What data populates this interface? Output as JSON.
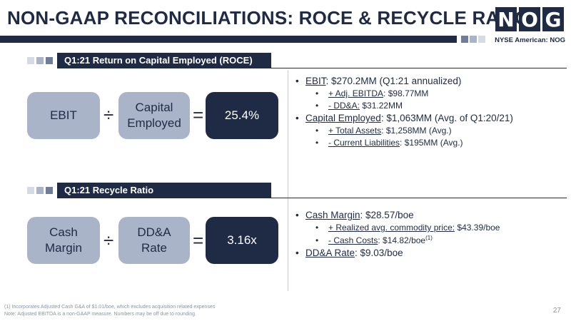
{
  "header": {
    "title": "NON-GAAP RECONCILIATIONS: ROCE & RECYCLE RATIO",
    "logo_letters": [
      "N",
      "O",
      "G"
    ],
    "exchange": "NYSE American: NOG"
  },
  "roce": {
    "heading": "Q1:21 Return on Capital Employed (ROCE)",
    "box1": "EBIT",
    "op1": "÷",
    "box2_line1": "Capital",
    "box2_line2": "Employed",
    "op2": "=",
    "result": "25.4%",
    "bullets": {
      "ebit_label": "EBIT",
      "ebit_value": ": $270.2MM (Q1:21 annualized)",
      "ebitda_label": "+ Adj. EBITDA",
      "ebitda_value": ": $98.77MM",
      "dda_label": "- DD&A:",
      "dda_value": " $31.22MM",
      "ce_label": "Capital Employed",
      "ce_value": ": $1,063MM (Avg. of Q1:20/21)",
      "ta_label": "+ Total Assets",
      "ta_value": ": $1,258MM (Avg.)",
      "cl_label": "- Current Liabilities",
      "cl_value": ": $195MM (Avg.)"
    }
  },
  "recycle": {
    "heading": "Q1:21 Recycle Ratio",
    "box1_line1": "Cash",
    "box1_line2": "Margin",
    "op1": "÷",
    "box2_line1": "DD&A",
    "box2_line2": "Rate",
    "op2": "=",
    "result": "3.16x",
    "bullets": {
      "cm_label": "Cash Margin",
      "cm_value": ": $28.57/boe",
      "rp_label": "+ Realized avg. commodity price:",
      "rp_value": " $43.39/boe",
      "cc_label": "- Cash Costs",
      "cc_value": ": $14.82/boe",
      "cc_sup": "(1)",
      "dr_label": "DD&A Rate",
      "dr_value": ": $9.03/boe"
    }
  },
  "footer": {
    "note1": "(1) Incorporates Adjusted Cash G&A of $1.01/boe, which excludes acquisition related expenses",
    "note2": "Note: Adjusted EBITDA is a non-GAAP measure. Numbers may be off due to rounding.",
    "page": "27"
  },
  "colors": {
    "navy": "#1f2a44",
    "box_light": "#aab4c8",
    "sq1": "#d5dae4",
    "sq2": "#aab4c8",
    "sq3": "#6f7d99"
  }
}
